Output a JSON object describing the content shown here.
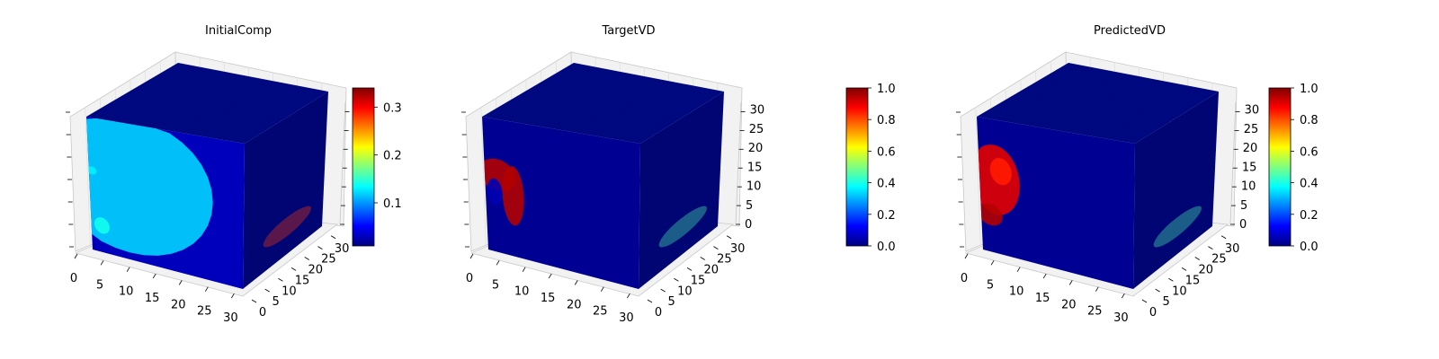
{
  "colors": {
    "pane": "#f2f2f2",
    "pane_edge": "#c8c8c8",
    "grid": "#e1e1e1",
    "top_face": "#00087f",
    "front_face": "#00009e",
    "side_face": "#000574",
    "colormap": [
      "#00007f",
      "#0000ff",
      "#007fff",
      "#00ffff",
      "#7fff7f",
      "#ffff00",
      "#ff7f00",
      "#ff0000",
      "#7f0000"
    ]
  },
  "chart_data": [
    {
      "type": "voxel-3d",
      "title": "InitialComp",
      "xticks": [
        "0",
        "5",
        "10",
        "15",
        "20",
        "25",
        "30"
      ],
      "yticks": [
        "0",
        "5",
        "10",
        "15",
        "20",
        "25",
        "30"
      ],
      "zticks": [],
      "xlim": [
        0,
        32
      ],
      "ylim": [
        0,
        32
      ],
      "zlim": [
        0,
        32
      ],
      "colorbar": {
        "ticks": [
          "0.1",
          "0.2",
          "0.3"
        ],
        "values": [
          0.1,
          0.2,
          0.3
        ],
        "range": [
          0.01,
          0.34
        ]
      },
      "front_face_value": 0.06,
      "blobs": [
        {
          "cx": 0.25,
          "cy": 0.45,
          "rx": 0.55,
          "ry": 0.5,
          "value": 0.12
        },
        {
          "cx": 0.07,
          "cy": 0.8,
          "rx": 0.05,
          "ry": 0.06,
          "value": 0.14
        },
        {
          "cx": 0.02,
          "cy": 0.4,
          "rx": 0.03,
          "ry": 0.03,
          "value": 0.13
        }
      ],
      "side_blob": {
        "cx": 0.55,
        "cy": 0.8,
        "rx": 0.3,
        "ry": 0.07,
        "value": 0.28
      }
    },
    {
      "type": "voxel-3d",
      "title": "TargetVD",
      "xticks": [
        "0",
        "5",
        "10",
        "15",
        "20",
        "25",
        "30"
      ],
      "yticks": [
        "0",
        "5",
        "10",
        "15",
        "20",
        "25",
        "30"
      ],
      "zticks": [
        "0",
        "5",
        "10",
        "15",
        "20",
        "25",
        "30"
      ],
      "xlim": [
        0,
        32
      ],
      "ylim": [
        0,
        32
      ],
      "zlim": [
        0,
        32
      ],
      "colorbar": {
        "ticks": [
          "0.0",
          "0.2",
          "0.4",
          "0.6",
          "0.8",
          "1.0"
        ],
        "values": [
          0,
          0.2,
          0.4,
          0.6,
          0.8,
          1.0
        ],
        "range": [
          0,
          1
        ]
      },
      "front_face_value": 0.02,
      "blobs": [
        {
          "cx": 0.08,
          "cy": 0.42,
          "rx": 0.12,
          "ry": 0.12,
          "value": 0.95
        },
        {
          "cx": 0.18,
          "cy": 0.55,
          "rx": 0.07,
          "ry": 0.22,
          "value": 0.95
        },
        {
          "cx": 0.06,
          "cy": 0.55,
          "rx": 0.05,
          "ry": 0.1,
          "value": 0.05
        }
      ],
      "side_blob": {
        "cx": 0.55,
        "cy": 0.8,
        "rx": 0.3,
        "ry": 0.07,
        "value": 0.45
      }
    },
    {
      "type": "voxel-3d",
      "title": "PredictedVD",
      "xticks": [
        "0",
        "5",
        "10",
        "15",
        "20",
        "25",
        "30"
      ],
      "yticks": [
        "0",
        "5",
        "10",
        "15",
        "20",
        "25",
        "30"
      ],
      "zticks": [
        "0",
        "5",
        "10",
        "15",
        "20",
        "25",
        "30"
      ],
      "xlim": [
        0,
        32
      ],
      "ylim": [
        0,
        32
      ],
      "zlim": [
        0,
        32
      ],
      "colorbar": {
        "ticks": [
          "0.0",
          "0.2",
          "0.4",
          "0.6",
          "0.8",
          "1.0"
        ],
        "values": [
          0,
          0.2,
          0.4,
          0.6,
          0.8,
          1.0
        ],
        "range": [
          0,
          1
        ]
      },
      "front_face_value": 0.02,
      "blobs": [
        {
          "cx": 0.1,
          "cy": 0.45,
          "rx": 0.16,
          "ry": 0.26,
          "value": 0.9
        },
        {
          "cx": 0.06,
          "cy": 0.72,
          "rx": 0.08,
          "ry": 0.08,
          "value": 0.95
        },
        {
          "cx": 0.14,
          "cy": 0.38,
          "rx": 0.07,
          "ry": 0.1,
          "value": 0.85
        }
      ],
      "side_blob": {
        "cx": 0.55,
        "cy": 0.8,
        "rx": 0.3,
        "ry": 0.07,
        "value": 0.45
      }
    }
  ]
}
